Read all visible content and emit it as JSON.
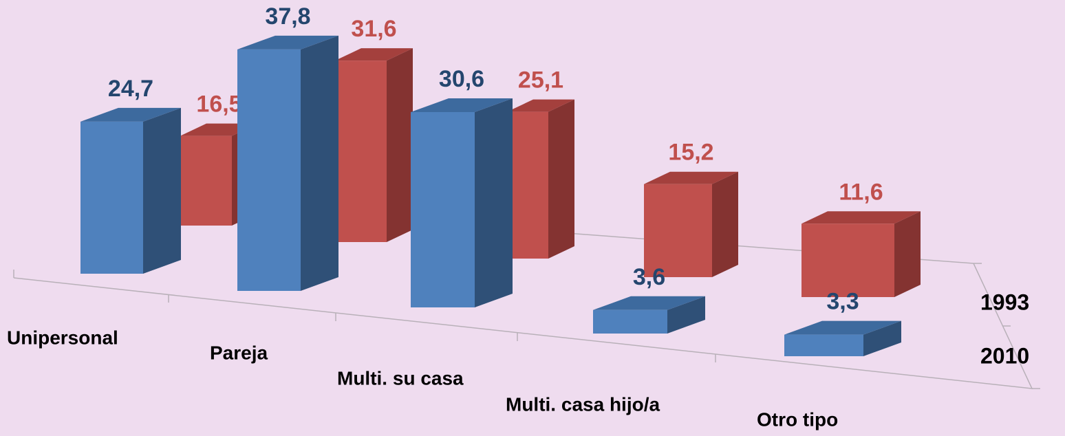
{
  "chart_data": {
    "type": "bar3d",
    "categories": [
      "Unipersonal",
      "Pareja",
      "Multi. su casa",
      "Multi. casa hijo/a",
      "Otro tipo"
    ],
    "series": [
      {
        "name": "1993",
        "color": "#c0504d",
        "values": [
          16.5,
          31.6,
          25.1,
          15.2,
          11.6
        ],
        "value_labels": [
          "16,5",
          "31,6",
          "25,1",
          "15,2",
          "11,6"
        ]
      },
      {
        "name": "2010",
        "color": "#4f81bd",
        "values": [
          24.7,
          37.8,
          30.6,
          3.6,
          3.3
        ],
        "value_labels": [
          "24,7",
          "37,8",
          "30,6",
          "3,6",
          "3,3"
        ]
      }
    ]
  }
}
